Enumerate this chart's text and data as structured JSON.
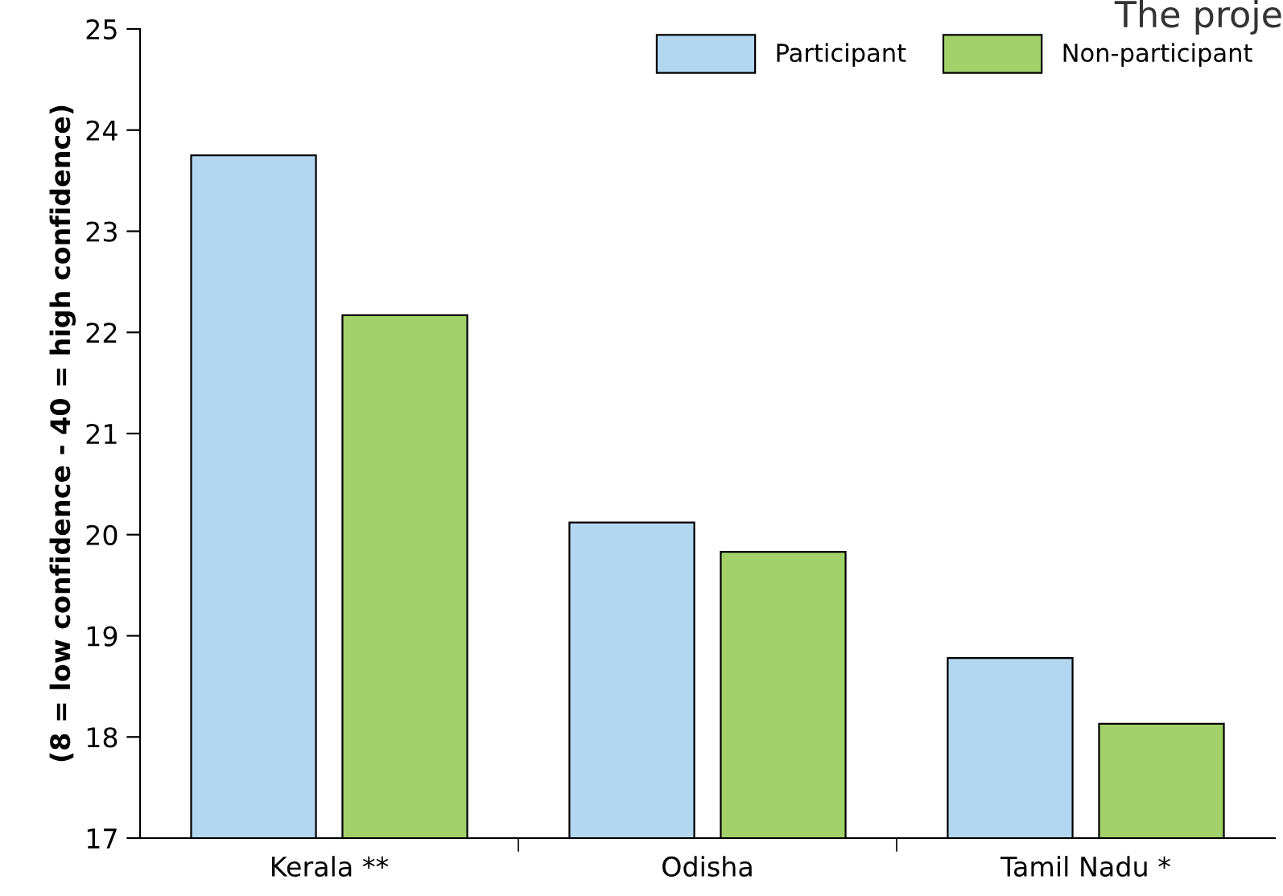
{
  "chart_data": {
    "type": "bar",
    "ylabel": "(8 = low confidence - 40 = high confidence)",
    "categories": [
      "Kerala **",
      "Odisha",
      "Tamil Nadu *"
    ],
    "series": [
      {
        "name": "Participant",
        "color": "#b3d7f0",
        "values": [
          23.75,
          20.12,
          18.78
        ]
      },
      {
        "name": "Non-participant",
        "color": "#a2d16a",
        "values": [
          22.17,
          19.83,
          18.13
        ]
      }
    ],
    "ylim": [
      17,
      25
    ],
    "yticks": [
      17,
      18,
      19,
      20,
      21,
      22,
      23,
      24,
      25
    ],
    "grid": false,
    "legend": "top right",
    "annotations": [
      "The proje"
    ]
  }
}
